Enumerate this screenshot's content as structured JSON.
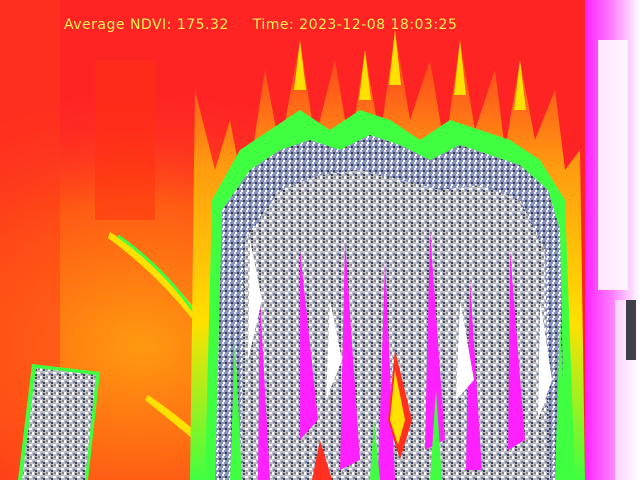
{
  "overlay": {
    "ndvi_label": "Average NDVI:",
    "ndvi_value": "175.32",
    "time_label": "Time:",
    "time_value": "2023-12-08 18:03:25"
  },
  "palette": {
    "background_red": "#ff2424",
    "warm_orange": "#ff7a10",
    "yellow": "#ffe000",
    "green": "#40ff40",
    "blue_gray": "#6f7fb8",
    "magenta": "#ff20ff",
    "white": "#ffffff",
    "dark_gray": "#404048",
    "overlay_text": "#f2f25a"
  }
}
